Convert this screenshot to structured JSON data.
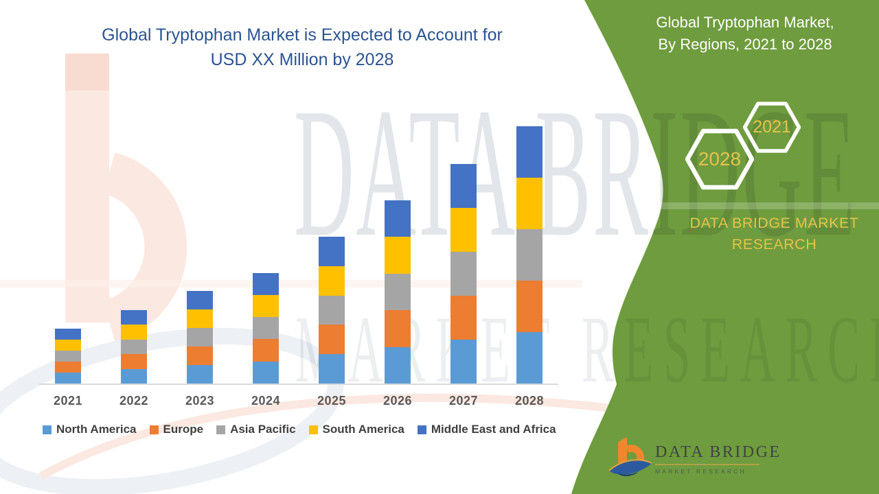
{
  "main_title": {
    "line1": "Global Tryptophan Market is Expected to Account for",
    "line2": "USD XX Million by 2028"
  },
  "side_panel": {
    "title_line1": "Global Tryptophan Market,",
    "title_line2": "By Regions, 2021 to 2028",
    "hexagons": [
      {
        "label": "2028"
      },
      {
        "label": "2021"
      }
    ],
    "brand_line1": "DATA BRIDGE MARKET",
    "brand_line2": "RESEARCH"
  },
  "watermark": {
    "line1": "DATA BRIDGE",
    "line2": "MARKET RESEARCH"
  },
  "logo": {
    "name": "DATA BRIDGE",
    "subtext": "MARKET RESEARCH",
    "b_icon": "data-bridge-b-icon"
  },
  "colors": {
    "panel_green": "#6f9c3e",
    "accent_yellow": "#e7c24b",
    "title_blue": "#2b5492",
    "axis_gray": "#d9d9d9",
    "tick_label_gray": "#595959",
    "logo_orange": "#f1862e",
    "logo_blue": "#2d5a9e"
  },
  "chart_data": {
    "type": "bar",
    "stacked": true,
    "title": "Global Tryptophan Market is Expected to Account for USD XX Million by 2028",
    "categories": [
      "2021",
      "2022",
      "2023",
      "2024",
      "2025",
      "2026",
      "2027",
      "2028"
    ],
    "series": [
      {
        "name": "North America",
        "color": "#5B9BD5",
        "values": [
          16,
          21.5,
          27,
          32.3,
          42.8,
          53.4,
          64,
          75
        ]
      },
      {
        "name": "Europe",
        "color": "#ED7D31",
        "values": [
          16,
          21.5,
          27,
          32.3,
          42.8,
          53.4,
          64,
          75
        ]
      },
      {
        "name": "Asia Pacific",
        "color": "#A5A5A5",
        "values": [
          16,
          21.5,
          27,
          32.3,
          42.8,
          53.4,
          64,
          75
        ]
      },
      {
        "name": "South America",
        "color": "#FFC000",
        "values": [
          16,
          21.5,
          27,
          32.3,
          42.8,
          53.4,
          64,
          75
        ]
      },
      {
        "name": "Middle East and Africa",
        "color": "#4472C4",
        "values": [
          16,
          21.5,
          27,
          32.3,
          42.8,
          53.4,
          64,
          75
        ]
      }
    ],
    "stack_order_bottom_to_top": [
      "North America",
      "Europe",
      "Asia Pacific",
      "South America",
      "Middle East and Africa"
    ],
    "y_axis_visible": false,
    "value_labels_visible": false,
    "gridlines": false,
    "legend_position": "bottom",
    "values_unit": "relative stack-height units (actual USD values shown as XX in source)"
  }
}
